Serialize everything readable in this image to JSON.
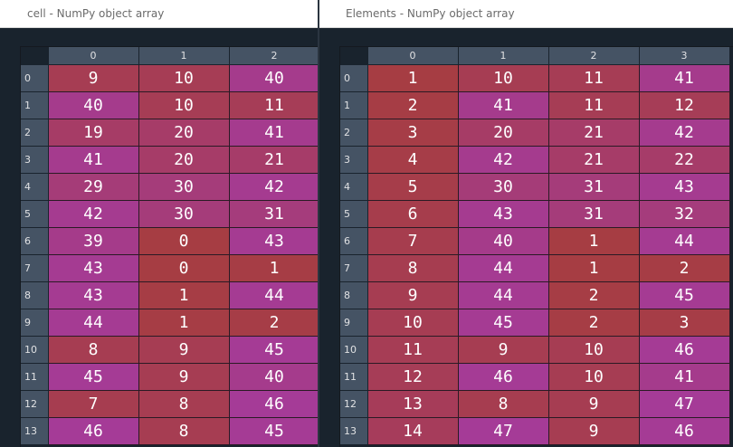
{
  "panels": {
    "left": {
      "title": "cell - NumPy object array",
      "columns": [
        "0",
        "1",
        "2"
      ],
      "rows": [
        {
          "index": "0",
          "values": [
            "9",
            "10",
            "40"
          ]
        },
        {
          "index": "1",
          "values": [
            "40",
            "10",
            "11"
          ]
        },
        {
          "index": "2",
          "values": [
            "19",
            "20",
            "41"
          ]
        },
        {
          "index": "3",
          "values": [
            "41",
            "20",
            "21"
          ]
        },
        {
          "index": "4",
          "values": [
            "29",
            "30",
            "42"
          ]
        },
        {
          "index": "5",
          "values": [
            "42",
            "30",
            "31"
          ]
        },
        {
          "index": "6",
          "values": [
            "39",
            "0",
            "43"
          ]
        },
        {
          "index": "7",
          "values": [
            "43",
            "0",
            "1"
          ]
        },
        {
          "index": "8",
          "values": [
            "43",
            "1",
            "44"
          ]
        },
        {
          "index": "9",
          "values": [
            "44",
            "1",
            "2"
          ]
        },
        {
          "index": "10",
          "values": [
            "8",
            "9",
            "45"
          ]
        },
        {
          "index": "11",
          "values": [
            "45",
            "9",
            "40"
          ]
        },
        {
          "index": "12",
          "values": [
            "7",
            "8",
            "46"
          ]
        },
        {
          "index": "13",
          "values": [
            "46",
            "8",
            "45"
          ]
        }
      ]
    },
    "right": {
      "title": "Elements - NumPy object array",
      "columns": [
        "0",
        "1",
        "2",
        "3"
      ],
      "rows": [
        {
          "index": "0",
          "values": [
            "1",
            "10",
            "11",
            "41"
          ]
        },
        {
          "index": "1",
          "values": [
            "2",
            "41",
            "11",
            "12"
          ]
        },
        {
          "index": "2",
          "values": [
            "3",
            "20",
            "21",
            "42"
          ]
        },
        {
          "index": "3",
          "values": [
            "4",
            "42",
            "21",
            "22"
          ]
        },
        {
          "index": "4",
          "values": [
            "5",
            "30",
            "31",
            "43"
          ]
        },
        {
          "index": "5",
          "values": [
            "6",
            "43",
            "31",
            "32"
          ]
        },
        {
          "index": "6",
          "values": [
            "7",
            "40",
            "1",
            "44"
          ]
        },
        {
          "index": "7",
          "values": [
            "8",
            "44",
            "1",
            "2"
          ]
        },
        {
          "index": "8",
          "values": [
            "9",
            "44",
            "2",
            "45"
          ]
        },
        {
          "index": "9",
          "values": [
            "10",
            "45",
            "2",
            "3"
          ]
        },
        {
          "index": "10",
          "values": [
            "11",
            "9",
            "10",
            "46"
          ]
        },
        {
          "index": "11",
          "values": [
            "12",
            "46",
            "10",
            "41"
          ]
        },
        {
          "index": "12",
          "values": [
            "13",
            "8",
            "9",
            "47"
          ]
        },
        {
          "index": "13",
          "values": [
            "14",
            "47",
            "9",
            "46"
          ]
        }
      ]
    }
  },
  "colors": {
    "low": "#a63d43",
    "high": "#a53b97"
  },
  "heatmap_range": {
    "left": [
      0,
      46
    ],
    "right": [
      1,
      47
    ]
  }
}
